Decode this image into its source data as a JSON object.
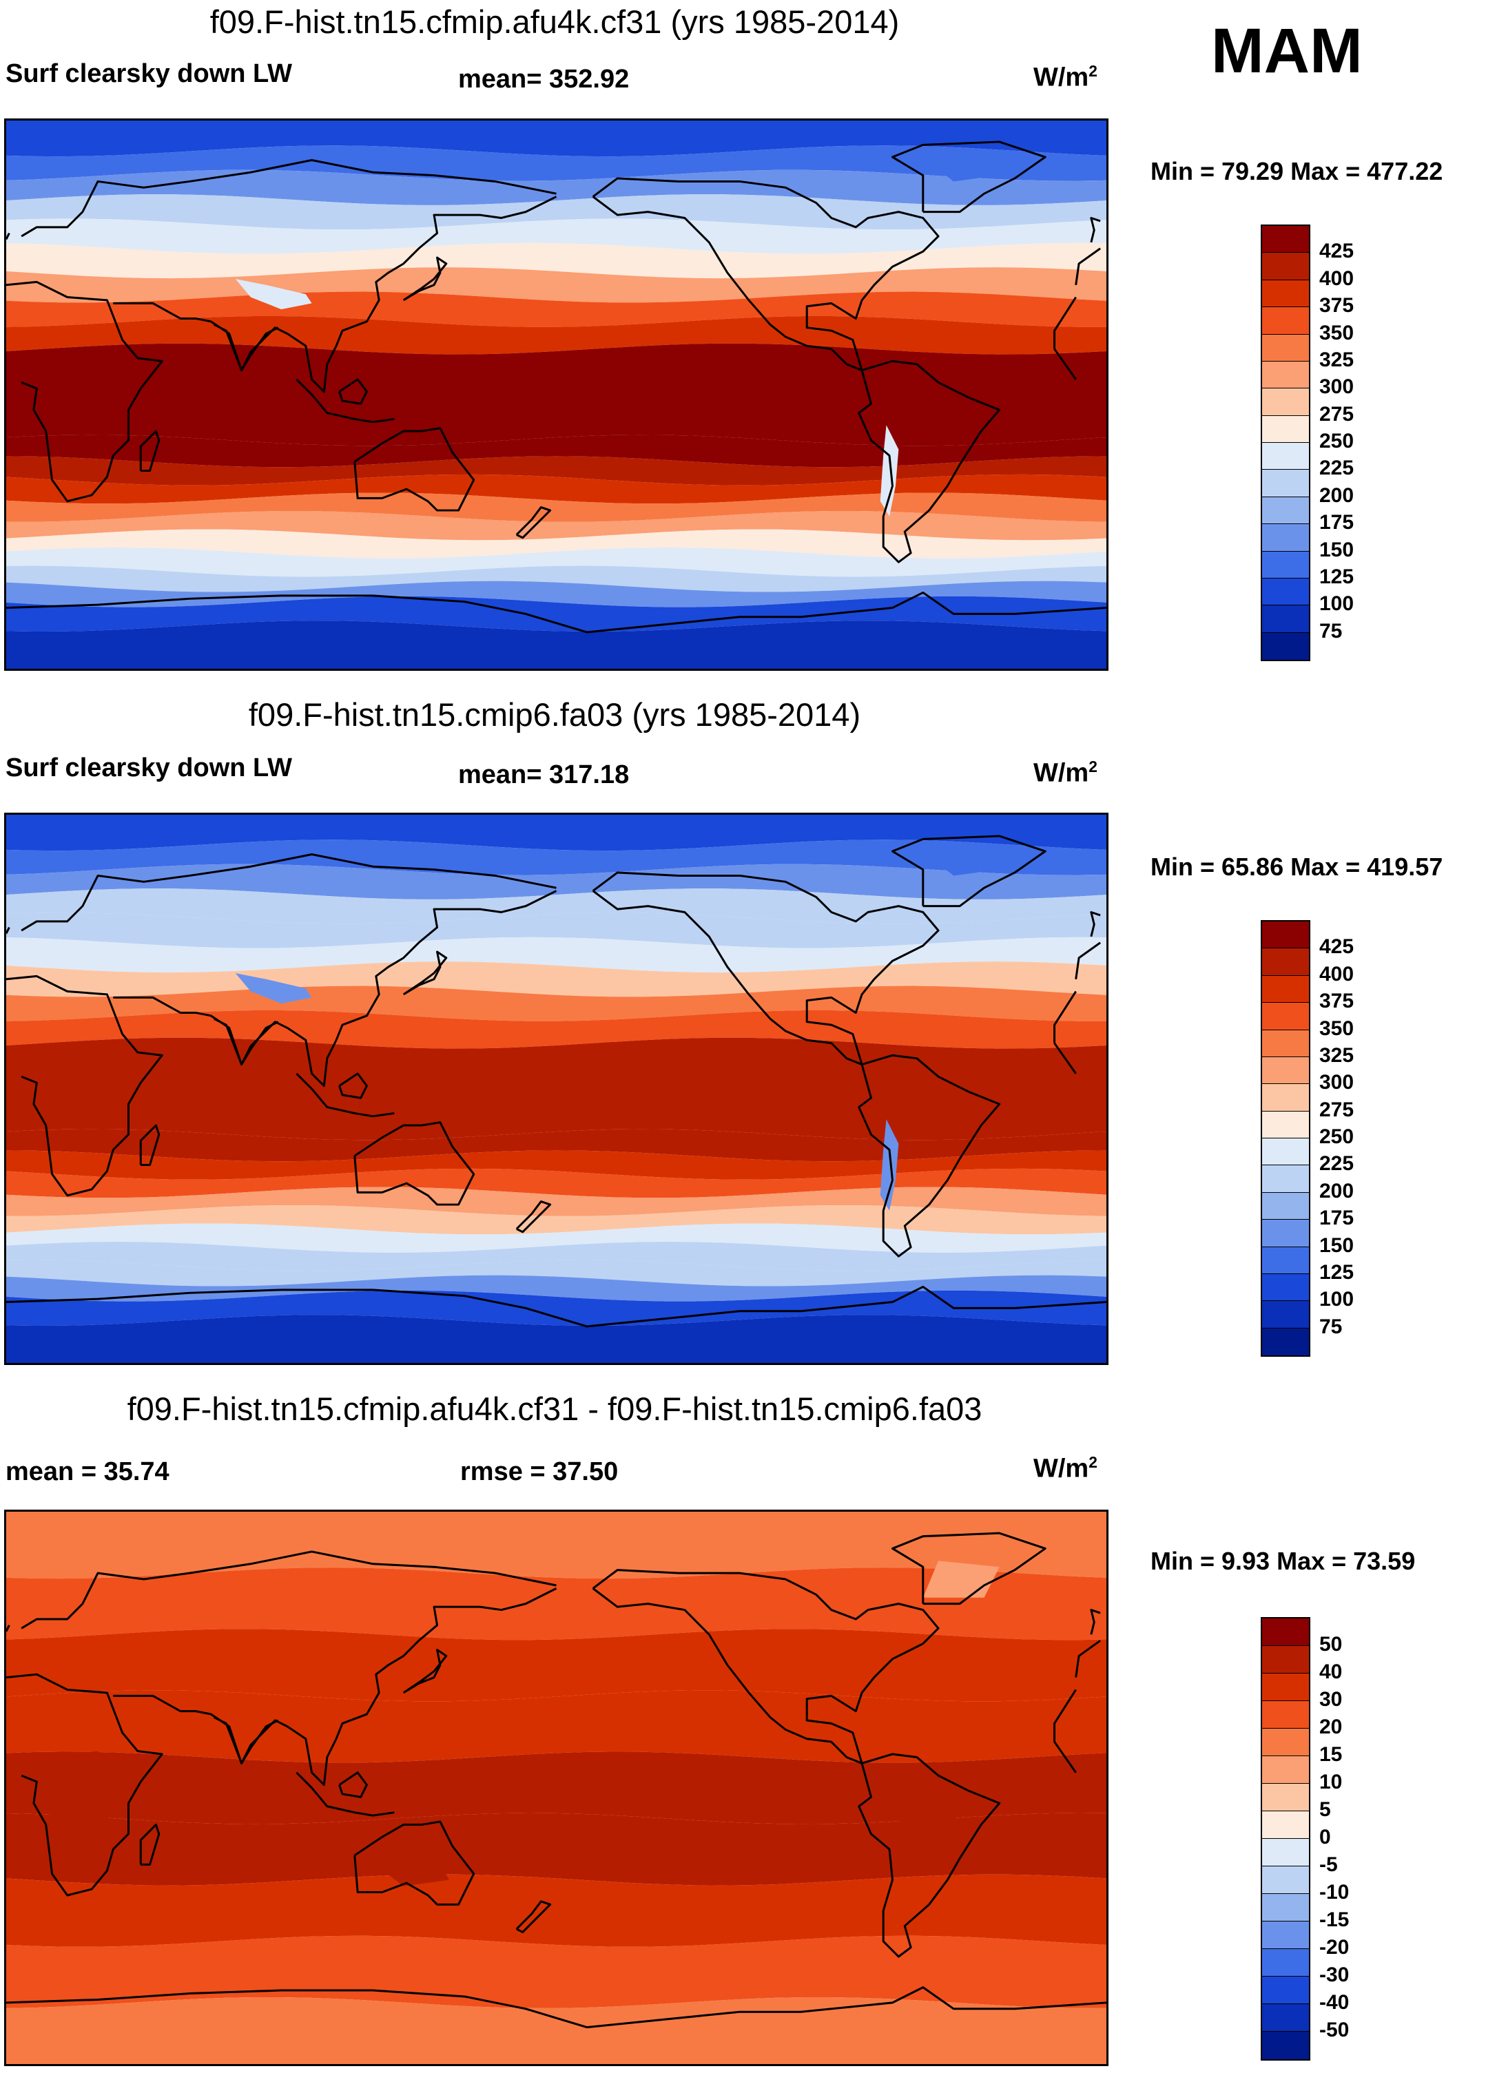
{
  "season": "MAM",
  "panels": [
    {
      "title": "f09.F-hist.tn15.cfmip.afu4k.cf31 (yrs 1985-2014)",
      "left_label": "Surf clearsky down LW",
      "center_label": "mean= 352.92",
      "units": "W/m",
      "units_sup": "2",
      "minmax": "Min =  79.29 Max = 477.22",
      "palette": "abs",
      "intensity": 0.0
    },
    {
      "title": "f09.F-hist.tn15.cmip6.fa03 (yrs 1985-2014)",
      "left_label": "Surf clearsky down LW",
      "center_label": "mean= 317.18",
      "units": "W/m",
      "units_sup": "2",
      "minmax": "Min =  65.86 Max = 419.57",
      "palette": "abs",
      "intensity": -1.0
    },
    {
      "title": "f09.F-hist.tn15.cfmip.afu4k.cf31 - f09.F-hist.tn15.cmip6.fa03",
      "left_label": "mean =  35.74",
      "center_label": "rmse =  37.50",
      "units": "W/m",
      "units_sup": "2",
      "minmax": "Min =   9.93 Max =  73.59",
      "palette": "diff",
      "intensity": 0.0
    }
  ],
  "colorbars": {
    "abs": {
      "labels": [
        "425",
        "400",
        "375",
        "350",
        "325",
        "300",
        "275",
        "250",
        "225",
        "200",
        "175",
        "150",
        "125",
        "100",
        "75"
      ],
      "colors": [
        "#8b0000",
        "#b51d00",
        "#d73000",
        "#f0501c",
        "#f77a44",
        "#fb9f74",
        "#fcc6a4",
        "#fdebdd",
        "#deeaf8",
        "#bcd3f4",
        "#94b4ee",
        "#6b92ea",
        "#3e6de8",
        "#1a48d8",
        "#0a2fb8",
        "#001a8c"
      ]
    },
    "diff": {
      "labels": [
        "50",
        "40",
        "30",
        "20",
        "15",
        "10",
        "5",
        "0",
        "-5",
        "-10",
        "-15",
        "-20",
        "-30",
        "-40",
        "-50"
      ],
      "colors": [
        "#8b0000",
        "#b51d00",
        "#d73000",
        "#f0501c",
        "#f77a44",
        "#fb9f74",
        "#fcc6a4",
        "#fdebdd",
        "#deeaf8",
        "#bcd3f4",
        "#94b4ee",
        "#6b92ea",
        "#3e6de8",
        "#1a48d8",
        "#0a2fb8",
        "#001a8c"
      ]
    }
  }
}
